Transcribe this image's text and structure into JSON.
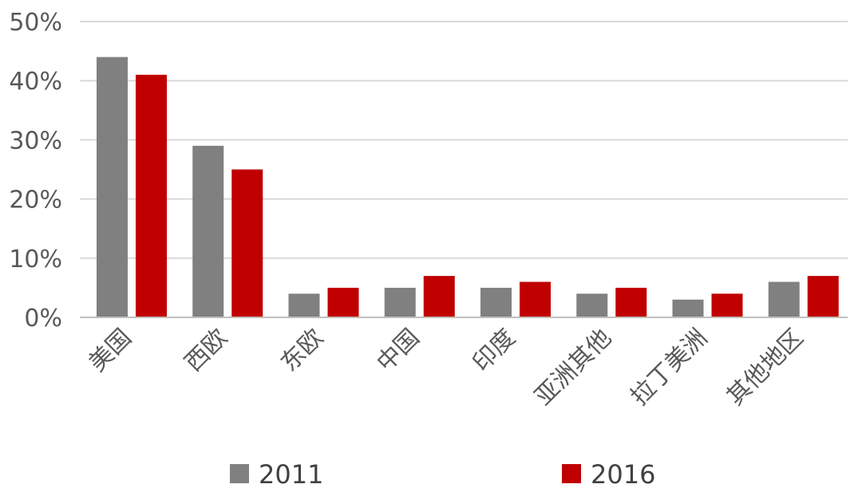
{
  "chart_data": {
    "type": "bar",
    "categories": [
      "美国",
      "西欧",
      "东欧",
      "中国",
      "印度",
      "亚洲其他",
      "拉丁美洲",
      "其他地区"
    ],
    "series": [
      {
        "name": "2011",
        "values": [
          44,
          29,
          4,
          5,
          5,
          4,
          3,
          6
        ],
        "color": "#808080"
      },
      {
        "name": "2016",
        "values": [
          41,
          25,
          5,
          7,
          6,
          5,
          4,
          7
        ],
        "color": "#c00000"
      }
    ],
    "yticks": [
      "0%",
      "10%",
      "20%",
      "30%",
      "40%",
      "50%"
    ],
    "ylim": [
      0,
      50
    ],
    "grid": true,
    "legend_position": "bottom",
    "title": "",
    "xlabel": "",
    "ylabel": ""
  }
}
